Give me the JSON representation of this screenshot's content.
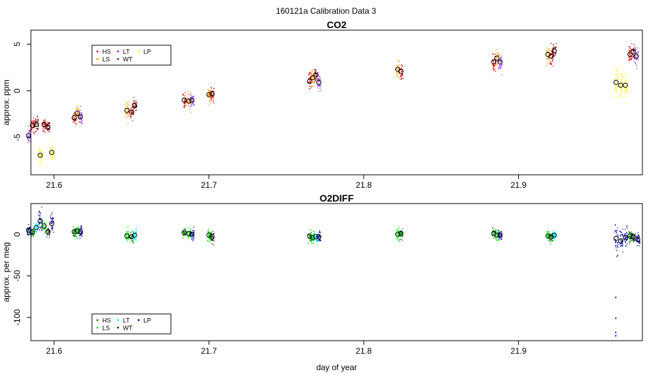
{
  "figure_title": "160121a   Calibration Data 3",
  "chart_data": [
    {
      "type": "scatter",
      "title": "CO2",
      "xlabel": "",
      "ylabel": "approx. ppm",
      "xlim": [
        21.585,
        21.98
      ],
      "ylim": [
        -9,
        6.5
      ],
      "x_ticks": [
        21.6,
        21.7,
        21.8,
        21.9
      ],
      "x_tick_labels": [
        "21.6",
        "21.7",
        "21.8",
        "21.9"
      ],
      "y_ticks": [
        5,
        0,
        -5
      ],
      "y_tick_labels": [
        "5",
        "0",
        "-5"
      ],
      "legend_position": "top-left",
      "legend": [
        {
          "label": "HS",
          "color": "#dd0000"
        },
        {
          "label": "LS",
          "color": "#ff9900"
        },
        {
          "label": "LT",
          "color": "#aa00ff"
        },
        {
          "label": "WT",
          "color": "#8b0000"
        },
        {
          "label": "LP",
          "color": "#ffff00"
        }
      ],
      "clusters": [
        {
          "series": "LT",
          "x": 21.5835,
          "y": -4.8,
          "spread": 0.8,
          "color": "#9933ff"
        },
        {
          "series": "HS",
          "x": 21.586,
          "y": -3.7,
          "spread": 0.8,
          "color": "#dd0000"
        },
        {
          "series": "WT",
          "x": 21.5885,
          "y": -3.6,
          "spread": 0.7,
          "color": "#8b0000"
        },
        {
          "series": "LP",
          "x": 21.591,
          "y": -6.9,
          "spread": 1.0,
          "color": "#ffff00"
        },
        {
          "series": "HS",
          "x": 21.5935,
          "y": -3.6,
          "spread": 0.7,
          "color": "#dd0000"
        },
        {
          "series": "WT",
          "x": 21.596,
          "y": -3.9,
          "spread": 0.7,
          "color": "#8b0000"
        },
        {
          "series": "LP",
          "x": 21.5985,
          "y": -6.6,
          "spread": 1.0,
          "color": "#ffff00"
        },
        {
          "series": "HS",
          "x": 21.613,
          "y": -2.9,
          "spread": 0.8,
          "color": "#dd0000"
        },
        {
          "series": "LS",
          "x": 21.615,
          "y": -2.4,
          "spread": 0.8,
          "color": "#ff9900"
        },
        {
          "series": "LT",
          "x": 21.617,
          "y": -2.8,
          "spread": 0.9,
          "color": "#9933ff"
        },
        {
          "series": "LS",
          "x": 21.647,
          "y": -2.1,
          "spread": 1.0,
          "color": "#ff9900"
        },
        {
          "series": "HS",
          "x": 21.65,
          "y": -2.3,
          "spread": 0.9,
          "color": "#dd0000"
        },
        {
          "series": "WT",
          "x": 21.652,
          "y": -1.6,
          "spread": 0.9,
          "color": "#8b0000"
        },
        {
          "series": "HS",
          "x": 21.684,
          "y": -1.0,
          "spread": 0.8,
          "color": "#dd0000"
        },
        {
          "series": "LS",
          "x": 21.687,
          "y": -1.1,
          "spread": 0.8,
          "color": "#ff9900"
        },
        {
          "series": "LT",
          "x": 21.689,
          "y": -1.0,
          "spread": 0.8,
          "color": "#9933ff"
        },
        {
          "series": "LS",
          "x": 21.7,
          "y": -0.4,
          "spread": 1.0,
          "color": "#ff9900"
        },
        {
          "series": "HS",
          "x": 21.702,
          "y": -0.3,
          "spread": 0.9,
          "color": "#dd0000"
        },
        {
          "series": "HS",
          "x": 21.765,
          "y": 1.0,
          "spread": 0.9,
          "color": "#dd0000"
        },
        {
          "series": "LS",
          "x": 21.767,
          "y": 1.4,
          "spread": 0.9,
          "color": "#ff9900"
        },
        {
          "series": "WT",
          "x": 21.769,
          "y": 1.7,
          "spread": 0.8,
          "color": "#8b0000"
        },
        {
          "series": "LT",
          "x": 21.771,
          "y": 0.9,
          "spread": 0.9,
          "color": "#9933ff"
        },
        {
          "series": "LS",
          "x": 21.822,
          "y": 2.3,
          "spread": 1.1,
          "color": "#ff9900"
        },
        {
          "series": "HS",
          "x": 21.824,
          "y": 2.1,
          "spread": 1.0,
          "color": "#dd0000"
        },
        {
          "series": "HS",
          "x": 21.884,
          "y": 3.1,
          "spread": 1.0,
          "color": "#dd0000"
        },
        {
          "series": "LS",
          "x": 21.886,
          "y": 3.5,
          "spread": 0.9,
          "color": "#ff9900"
        },
        {
          "series": "LT",
          "x": 21.888,
          "y": 3.1,
          "spread": 0.9,
          "color": "#9933ff"
        },
        {
          "series": "LS",
          "x": 21.919,
          "y": 3.9,
          "spread": 1.0,
          "color": "#ff9900"
        },
        {
          "series": "HS",
          "x": 21.921,
          "y": 3.7,
          "spread": 0.9,
          "color": "#dd0000"
        },
        {
          "series": "WT",
          "x": 21.923,
          "y": 4.3,
          "spread": 0.8,
          "color": "#8b0000"
        },
        {
          "series": "LP",
          "x": 21.963,
          "y": 0.9,
          "spread": 1.4,
          "color": "#ffff00"
        },
        {
          "series": "LP",
          "x": 21.966,
          "y": 0.6,
          "spread": 1.3,
          "color": "#ffff00"
        },
        {
          "series": "LP",
          "x": 21.969,
          "y": 0.6,
          "spread": 1.3,
          "color": "#ffff00"
        },
        {
          "series": "HS",
          "x": 21.972,
          "y": 3.9,
          "spread": 0.9,
          "color": "#dd0000"
        },
        {
          "series": "WT",
          "x": 21.974,
          "y": 4.2,
          "spread": 0.8,
          "color": "#8b0000"
        },
        {
          "series": "LT",
          "x": 21.976,
          "y": 3.7,
          "spread": 0.9,
          "color": "#9933ff"
        }
      ]
    },
    {
      "type": "scatter",
      "title": "O2DIFF",
      "xlabel": "day of year",
      "ylabel": "approx. per meg",
      "xlim": [
        21.585,
        21.98
      ],
      "ylim": [
        -128,
        37
      ],
      "x_ticks": [
        21.6,
        21.7,
        21.8,
        21.9
      ],
      "x_tick_labels": [
        "21.6",
        "21.7",
        "21.8",
        "21.9"
      ],
      "y_ticks": [
        0,
        -50,
        -100
      ],
      "y_tick_labels": [
        "0",
        "-50",
        "-100"
      ],
      "legend_position": "bottom-left",
      "legend": [
        {
          "label": "HS",
          "color": "#008800"
        },
        {
          "label": "LS",
          "color": "#00ee00"
        },
        {
          "label": "LT",
          "color": "#00ffff"
        },
        {
          "label": "WT",
          "color": "#003300"
        },
        {
          "label": "LP",
          "color": "#0000aa"
        }
      ],
      "clusters": [
        {
          "series": "LP",
          "x": 21.5835,
          "y": 5,
          "spread": 7,
          "color": "#0000aa"
        },
        {
          "series": "HS",
          "x": 21.586,
          "y": 3,
          "spread": 6,
          "color": "#008800"
        },
        {
          "series": "LT",
          "x": 21.5885,
          "y": 8,
          "spread": 6,
          "color": "#00ffff"
        },
        {
          "series": "LP",
          "x": 21.591,
          "y": 16,
          "spread": 14,
          "color": "#0000aa"
        },
        {
          "series": "LS",
          "x": 21.5935,
          "y": 10,
          "spread": 7,
          "color": "#00ee00"
        },
        {
          "series": "WT",
          "x": 21.596,
          "y": 3,
          "spread": 6,
          "color": "#003300"
        },
        {
          "series": "LP",
          "x": 21.5985,
          "y": 13,
          "spread": 12,
          "color": "#0000aa"
        },
        {
          "series": "HS",
          "x": 21.613,
          "y": 3,
          "spread": 7,
          "color": "#008800"
        },
        {
          "series": "LS",
          "x": 21.615,
          "y": 4,
          "spread": 7,
          "color": "#00ee00"
        },
        {
          "series": "LP",
          "x": 21.617,
          "y": 3,
          "spread": 7,
          "color": "#0000aa"
        },
        {
          "series": "LS",
          "x": 21.647,
          "y": -2,
          "spread": 8,
          "color": "#00ee00"
        },
        {
          "series": "HS",
          "x": 21.65,
          "y": -3,
          "spread": 7,
          "color": "#008800"
        },
        {
          "series": "LT",
          "x": 21.652,
          "y": -1,
          "spread": 7,
          "color": "#00ffff"
        },
        {
          "series": "HS",
          "x": 21.684,
          "y": 2,
          "spread": 6,
          "color": "#008800"
        },
        {
          "series": "LS",
          "x": 21.687,
          "y": 1,
          "spread": 6,
          "color": "#00ee00"
        },
        {
          "series": "LP",
          "x": 21.689,
          "y": 0,
          "spread": 6,
          "color": "#0000aa"
        },
        {
          "series": "LS",
          "x": 21.7,
          "y": -1,
          "spread": 7,
          "color": "#00ee00"
        },
        {
          "series": "WT",
          "x": 21.702,
          "y": -3,
          "spread": 7,
          "color": "#003300"
        },
        {
          "series": "HS",
          "x": 21.765,
          "y": -2,
          "spread": 7,
          "color": "#008800"
        },
        {
          "series": "LS",
          "x": 21.767,
          "y": -4,
          "spread": 7,
          "color": "#00ee00"
        },
        {
          "series": "LT",
          "x": 21.769,
          "y": -3,
          "spread": 6,
          "color": "#00ffff"
        },
        {
          "series": "LP",
          "x": 21.771,
          "y": -3,
          "spread": 6,
          "color": "#0000aa"
        },
        {
          "series": "LS",
          "x": 21.822,
          "y": 0,
          "spread": 7,
          "color": "#00ee00"
        },
        {
          "series": "HS",
          "x": 21.824,
          "y": 1,
          "spread": 7,
          "color": "#008800"
        },
        {
          "series": "HS",
          "x": 21.884,
          "y": 1,
          "spread": 7,
          "color": "#008800"
        },
        {
          "series": "LS",
          "x": 21.886,
          "y": -1,
          "spread": 6,
          "color": "#00ee00"
        },
        {
          "series": "LP",
          "x": 21.888,
          "y": -1,
          "spread": 6,
          "color": "#0000aa"
        },
        {
          "series": "LS",
          "x": 21.919,
          "y": -2,
          "spread": 6,
          "color": "#00ee00"
        },
        {
          "series": "HS",
          "x": 21.921,
          "y": -3,
          "spread": 6,
          "color": "#008800"
        },
        {
          "series": "LT",
          "x": 21.923,
          "y": -1,
          "spread": 6,
          "color": "#00ffff"
        },
        {
          "series": "LP",
          "x": 21.963,
          "y": -5,
          "spread": 22,
          "color": "#0000aa"
        },
        {
          "series": "LP",
          "x": 21.966,
          "y": -8,
          "spread": 16,
          "color": "#0000aa"
        },
        {
          "series": "LP",
          "x": 21.969,
          "y": -4,
          "spread": 12,
          "color": "#0000aa"
        },
        {
          "series": "HS",
          "x": 21.972,
          "y": -2,
          "spread": 7,
          "color": "#008800"
        },
        {
          "series": "WT",
          "x": 21.974,
          "y": -3,
          "spread": 6,
          "color": "#003300"
        },
        {
          "series": "LP",
          "x": 21.977,
          "y": -6,
          "spread": 7,
          "color": "#0000aa"
        }
      ],
      "outliers": [
        {
          "series": "LP",
          "x": 21.9625,
          "y": -75
        },
        {
          "series": "LP",
          "x": 21.9625,
          "y": -100
        },
        {
          "series": "LP",
          "x": 21.9625,
          "y": -117
        },
        {
          "series": "LP",
          "x": 21.9625,
          "y": -121
        }
      ]
    }
  ]
}
